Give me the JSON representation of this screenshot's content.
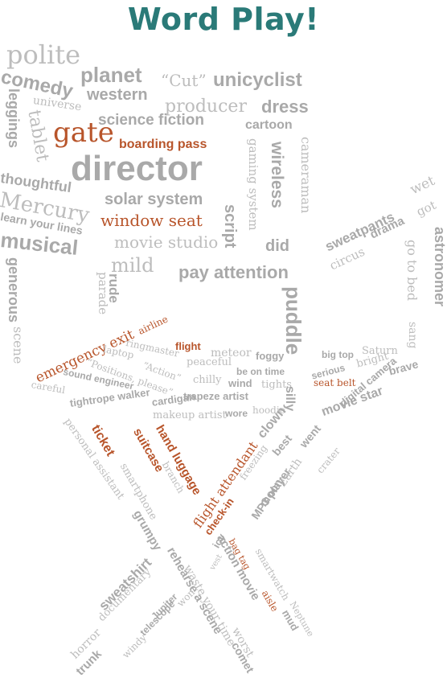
{
  "title": "Word Play!",
  "colors": {
    "title": "#2a7a78",
    "grey": "#bdbdbd",
    "dark_grey": "#a9a9a9",
    "accent": "#b8552b"
  },
  "words": [
    {
      "text": "polite",
      "style": "normal"
    },
    {
      "text": "planet",
      "style": "bold"
    },
    {
      "text": "“Cut”",
      "style": "normal"
    },
    {
      "text": "unicyclist",
      "style": "bold"
    },
    {
      "text": "comedy",
      "style": "bold"
    },
    {
      "text": "western",
      "style": "bold"
    },
    {
      "text": "producer",
      "style": "normal"
    },
    {
      "text": "dress",
      "style": "bold"
    },
    {
      "text": "universe",
      "style": "normal"
    },
    {
      "text": "science fiction",
      "style": "bold"
    },
    {
      "text": "cartoon",
      "style": "bold"
    },
    {
      "text": "leggings",
      "style": "bold"
    },
    {
      "text": "tablet",
      "style": "normal"
    },
    {
      "text": "gate",
      "style": "accent"
    },
    {
      "text": "boarding pass",
      "style": "accent-bold"
    },
    {
      "text": "gaming system",
      "style": "normal"
    },
    {
      "text": "wireless",
      "style": "bold"
    },
    {
      "text": "cameraman",
      "style": "normal"
    },
    {
      "text": "director",
      "style": "bold"
    },
    {
      "text": "thoughtful",
      "style": "bold"
    },
    {
      "text": "Mercury",
      "style": "normal"
    },
    {
      "text": "solar system",
      "style": "bold"
    },
    {
      "text": "window seat",
      "style": "accent"
    },
    {
      "text": "script",
      "style": "bold"
    },
    {
      "text": "learn your lines",
      "style": "bold"
    },
    {
      "text": "musical",
      "style": "bold"
    },
    {
      "text": "movie studio",
      "style": "normal"
    },
    {
      "text": "did",
      "style": "bold"
    },
    {
      "text": "sweatpants",
      "style": "bold"
    },
    {
      "text": "wet",
      "style": "normal"
    },
    {
      "text": "got",
      "style": "normal"
    },
    {
      "text": "circus",
      "style": "normal"
    },
    {
      "text": "drama",
      "style": "bold"
    },
    {
      "text": "mild",
      "style": "normal"
    },
    {
      "text": "pay attention",
      "style": "bold"
    },
    {
      "text": "generous",
      "style": "bold"
    },
    {
      "text": "scene",
      "style": "normal"
    },
    {
      "text": "parade",
      "style": "normal"
    },
    {
      "text": "rude",
      "style": "bold"
    },
    {
      "text": "puddle",
      "style": "bold"
    },
    {
      "text": "go to bed",
      "style": "normal"
    },
    {
      "text": "sang",
      "style": "normal"
    },
    {
      "text": "astronomer",
      "style": "bold"
    },
    {
      "text": "emergency exit",
      "style": "accent"
    },
    {
      "text": "airline",
      "style": "accent"
    },
    {
      "text": "flight",
      "style": "accent-bold"
    },
    {
      "text": "meteor",
      "style": "normal"
    },
    {
      "text": "foggy",
      "style": "bold"
    },
    {
      "text": "big top",
      "style": "bold"
    },
    {
      "text": "Saturn",
      "style": "normal"
    },
    {
      "text": "ringmaster",
      "style": "normal"
    },
    {
      "text": "laptop",
      "style": "normal"
    },
    {
      "text": "peaceful",
      "style": "normal"
    },
    {
      "text": "be on time",
      "style": "bold"
    },
    {
      "text": "serious",
      "style": "bold"
    },
    {
      "text": "bright",
      "style": "normal"
    },
    {
      "text": "brave",
      "style": "bold"
    },
    {
      "text": "“Positions, please”",
      "style": "normal"
    },
    {
      "text": "“Action”",
      "style": "normal"
    },
    {
      "text": "chilly",
      "style": "normal"
    },
    {
      "text": "wind",
      "style": "bold"
    },
    {
      "text": "tights",
      "style": "normal"
    },
    {
      "text": "silly",
      "style": "bold"
    },
    {
      "text": "seat belt",
      "style": "accent"
    },
    {
      "text": "sound engineer",
      "style": "bold"
    },
    {
      "text": "trapeze artist",
      "style": "bold"
    },
    {
      "text": "movie star",
      "style": "bold"
    },
    {
      "text": "careful",
      "style": "normal"
    },
    {
      "text": "tightrope walker",
      "style": "bold"
    },
    {
      "text": "cardigan",
      "style": "bold"
    },
    {
      "text": "makeup artist",
      "style": "normal"
    },
    {
      "text": "wore",
      "style": "bold"
    },
    {
      "text": "hoodie",
      "style": "normal"
    },
    {
      "text": "digital camera",
      "style": "bold"
    },
    {
      "text": "personal assistant",
      "style": "normal"
    },
    {
      "text": "ticket",
      "style": "accent-bold"
    },
    {
      "text": "suitcase",
      "style": "accent-bold"
    },
    {
      "text": "hand luggage",
      "style": "accent-bold"
    },
    {
      "text": "branch",
      "style": "normal"
    },
    {
      "text": "clown",
      "style": "bold"
    },
    {
      "text": "best",
      "style": "bold"
    },
    {
      "text": "went",
      "style": "bold"
    },
    {
      "text": "crater",
      "style": "normal"
    },
    {
      "text": "smartphone",
      "style": "normal"
    },
    {
      "text": "flight attendant",
      "style": "accent"
    },
    {
      "text": "freezing",
      "style": "normal"
    },
    {
      "text": "moon",
      "style": "bold"
    },
    {
      "text": "Earth",
      "style": "normal"
    },
    {
      "text": "grumpy",
      "style": "bold"
    },
    {
      "text": "check-in",
      "style": "accent-bold"
    },
    {
      "text": "MP3 player",
      "style": "bold"
    },
    {
      "text": "bag tag",
      "style": "accent"
    },
    {
      "text": "icy",
      "style": "bold"
    },
    {
      "text": "vest",
      "style": "normal"
    },
    {
      "text": "rehearse a scene",
      "style": "bold"
    },
    {
      "text": "action movie",
      "style": "bold"
    },
    {
      "text": "smartwatch",
      "style": "normal"
    },
    {
      "text": "documentary",
      "style": "normal"
    },
    {
      "text": "horror",
      "style": "normal"
    },
    {
      "text": "sweatshirt",
      "style": "bold"
    },
    {
      "text": "trunk",
      "style": "bold"
    },
    {
      "text": "windy",
      "style": "normal"
    },
    {
      "text": "Jupiter",
      "style": "bold"
    },
    {
      "text": "telescope",
      "style": "bold"
    },
    {
      "text": "won",
      "style": "normal"
    },
    {
      "text": "waste your time",
      "style": "normal"
    },
    {
      "text": "aisle",
      "style": "accent"
    },
    {
      "text": "Neptune",
      "style": "normal"
    },
    {
      "text": "mud",
      "style": "bold"
    },
    {
      "text": "worst",
      "style": "normal"
    },
    {
      "text": "comet",
      "style": "bold"
    }
  ]
}
